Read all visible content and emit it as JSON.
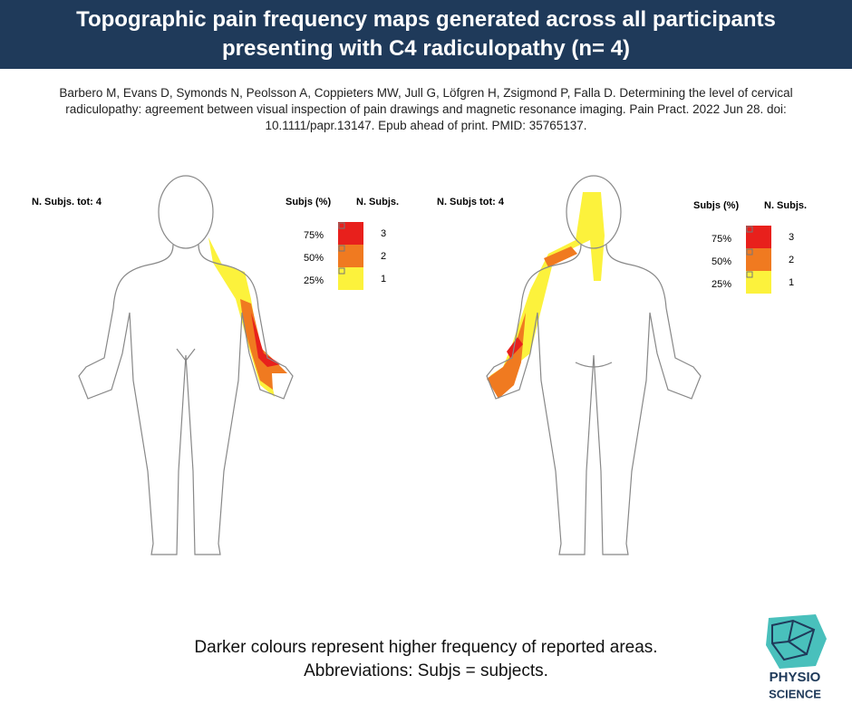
{
  "header": {
    "title": "Topographic pain frequency maps generated across all participants presenting with C4 radiculopathy (n= 4)"
  },
  "citation": "Barbero M, Evans D, Symonds N, Peolsson A, Coppieters MW, Jull G, Löfgren H, Zsigmond P, Falla D. Determining the level of cervical radiculopathy: agreement between visual inspection of pain drawings and magnetic resonance imaging. Pain Pract. 2022 Jun 28. doi: 10.1111/papr.13147. Epub ahead of print. PMID: 35765137.",
  "panels": [
    {
      "view": "front",
      "total_label": "N. Subjs. tot: 4",
      "legend": {
        "header_pct": "Subjs (%)",
        "header_n": "N. Subjs.",
        "rows": [
          {
            "pct": "75%",
            "n": "3",
            "color": "#e8201c"
          },
          {
            "pct": "50%",
            "n": "2",
            "color": "#f07a20"
          },
          {
            "pct": "25%",
            "n": "1",
            "color": "#fcf23c"
          }
        ]
      }
    },
    {
      "view": "back",
      "total_label": "N. Subjs tot: 4",
      "legend": {
        "header_pct": "Subjs (%)",
        "header_n": "N. Subjs.",
        "rows": [
          {
            "pct": "75%",
            "n": "3",
            "color": "#e8201c"
          },
          {
            "pct": "50%",
            "n": "2",
            "color": "#f07a20"
          },
          {
            "pct": "25%",
            "n": "1",
            "color": "#fcf23c"
          }
        ]
      }
    }
  ],
  "footer": {
    "line1": "Darker colours represent higher frequency of reported areas.",
    "line2": "Abbreviations: Subjs = subjects."
  },
  "logo": {
    "line1": "PHYSIO",
    "line2": "SCIENCE"
  }
}
